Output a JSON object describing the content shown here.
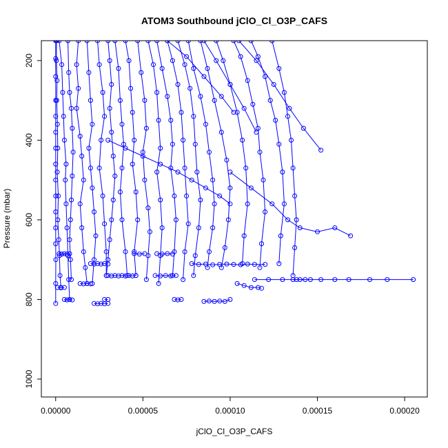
{
  "chart_data": {
    "type": "line",
    "title": "ATOM3 Southbound jClO_Cl_O3P_CAFS",
    "xlabel": "jClO_Cl_O3P_CAFS",
    "ylabel": "Pressure (mbar)",
    "xlim": [
      -8.2e-06,
      0.000213
    ],
    "ylim": [
      1045,
      150
    ],
    "y_reversed": true,
    "grid": false,
    "series_color": "#0000ff",
    "marker": "open-circle",
    "x_ticks": [
      {
        "value": 0,
        "label": "0.00000"
      },
      {
        "value": 5e-05,
        "label": "0.00005"
      },
      {
        "value": 0.0001,
        "label": "0.00010"
      },
      {
        "value": 0.00015,
        "label": "0.00015"
      },
      {
        "value": 0.0002,
        "label": "0.00020"
      }
    ],
    "y_ticks": [
      {
        "value": 200,
        "label": "200"
      },
      {
        "value": 400,
        "label": "400"
      },
      {
        "value": 600,
        "label": "600"
      },
      {
        "value": 800,
        "label": "800"
      },
      {
        "value": 1000,
        "label": "1000"
      }
    ],
    "series": [
      {
        "x": [
          0,
          0,
          0,
          0,
          0,
          0,
          0,
          0,
          0,
          0,
          0,
          0,
          0,
          1e-07,
          0,
          0
        ],
        "y": [
          150,
          195,
          240,
          300,
          340,
          380,
          420,
          460,
          500,
          540,
          580,
          620,
          660,
          700,
          760,
          810
        ]
      },
      {
        "x": [
          5e-07,
          4e-07,
          8e-07,
          6e-07,
          1e-06,
          1.2e-06,
          9e-07,
          1.5e-06,
          1.2e-06,
          1.8e-06,
          2.2e-06,
          2.5e-06,
          3e-06
        ],
        "y": [
          150,
          200,
          250,
          300,
          360,
          420,
          480,
          540,
          600,
          650,
          690,
          740,
          770
        ]
      },
      {
        "x": [
          2e-06,
          3.5e-06,
          4e-06,
          4.5e-06,
          5e-06,
          6e-06,
          5.5e-06,
          6e-06,
          6.5e-06,
          7e-06,
          7.5e-06,
          8e-06
        ],
        "y": [
          150,
          210,
          280,
          340,
          400,
          460,
          500,
          560,
          620,
          690,
          750,
          800
        ]
      },
      {
        "x": [
          7e-06,
          7.5e-06,
          8e-06,
          9e-06,
          9.5e-06,
          1e-05,
          9.5e-06,
          9e-06,
          8.5e-06,
          8e-06,
          8.5e-06,
          9e-06
        ],
        "y": [
          150,
          230,
          280,
          320,
          370,
          430,
          490,
          550,
          600,
          650,
          700,
          750
        ]
      },
      {
        "x": [
          1.3e-05,
          1.2e-05,
          1.3e-05,
          1.2e-05,
          1.4e-05,
          1.5e-05,
          1.6e-05,
          1.4e-05,
          1.5e-05,
          1.6e-05,
          1.7e-05,
          1.8e-05
        ],
        "y": [
          150,
          210,
          270,
          320,
          390,
          440,
          500,
          560,
          620,
          680,
          720,
          760
        ]
      },
      {
        "x": [
          1.8e-05,
          1.9e-05,
          2e-05,
          2.1e-05,
          1.9e-05,
          2e-05,
          2.1e-05,
          2.2e-05,
          2.3e-05,
          2.2e-05,
          2.1e-05
        ],
        "y": [
          150,
          230,
          300,
          360,
          420,
          470,
          520,
          580,
          640,
          700,
          760
        ]
      },
      {
        "x": [
          2.4e-05,
          2.5e-05,
          2.7e-05,
          2.8e-05,
          2.6e-05,
          2.5e-05,
          2.7e-05,
          2.8e-05,
          2.9e-05,
          2.9e-05
        ],
        "y": [
          150,
          210,
          280,
          340,
          400,
          470,
          540,
          610,
          680,
          740
        ]
      },
      {
        "x": [
          3e-05,
          3.1e-05,
          3.2e-05,
          3.1e-05,
          3.2e-05,
          3.3e-05,
          3.4e-05,
          3.3e-05,
          3.2e-05,
          3.1e-05,
          3e-05,
          2.9e-05
        ],
        "y": [
          150,
          200,
          260,
          320,
          380,
          440,
          490,
          550,
          600,
          650,
          700,
          740
        ]
      },
      {
        "x": [
          3.4e-05,
          3.6e-05,
          3.7e-05,
          3.8e-05,
          3.9e-05,
          3.8e-05,
          3.7e-05,
          3.8e-05,
          4e-05,
          4.1e-05
        ],
        "y": [
          150,
          220,
          300,
          360,
          410,
          470,
          530,
          600,
          680,
          740
        ]
      },
      {
        "x": [
          4e-05,
          4.2e-05,
          4.3e-05,
          4.4e-05,
          4.5e-05,
          4.4e-05,
          4.6e-05,
          4.7e-05,
          4.5e-05,
          4.6e-05
        ],
        "y": [
          150,
          200,
          270,
          330,
          400,
          460,
          530,
          600,
          680,
          740
        ]
      },
      {
        "x": [
          4.7e-05,
          4.9e-05,
          5.1e-05,
          5.2e-05,
          5e-05,
          5.1e-05,
          5.3e-05,
          5.4e-05,
          5.3e-05,
          5.2e-05
        ],
        "y": [
          150,
          230,
          300,
          370,
          430,
          500,
          570,
          630,
          690,
          750
        ]
      },
      {
        "x": [
          5.3e-05,
          5.6e-05,
          5.8e-05,
          5.9e-05,
          6e-05,
          5.8e-05,
          6e-05,
          6.1e-05,
          6e-05,
          5.9e-05
        ],
        "y": [
          150,
          210,
          280,
          350,
          420,
          480,
          550,
          620,
          690,
          760
        ]
      },
      {
        "x": [
          5.8e-05,
          6.1e-05,
          6.4e-05,
          6.6e-05,
          6.7e-05,
          6.6e-05,
          6.8e-05,
          6.9e-05,
          6.8e-05,
          6.7e-05
        ],
        "y": [
          150,
          220,
          290,
          350,
          410,
          470,
          540,
          600,
          680,
          740
        ]
      },
      {
        "x": [
          6.4e-05,
          6.7e-05,
          7e-05,
          7.2e-05,
          7.3e-05,
          7.4e-05,
          7.5e-05,
          7.6e-05,
          7.4e-05,
          7.3e-05
        ],
        "y": [
          150,
          200,
          260,
          330,
          400,
          470,
          540,
          610,
          680,
          750
        ]
      },
      {
        "x": [
          7e-05,
          7.4e-05,
          7.7e-05,
          7.9e-05,
          8e-05,
          8.1e-05,
          8.3e-05,
          8.2e-05,
          8e-05,
          7.9e-05
        ],
        "y": [
          150,
          210,
          270,
          340,
          410,
          480,
          550,
          620,
          690,
          740
        ]
      },
      {
        "x": [
          7.6e-05,
          7.9e-05,
          8.3e-05,
          8.6e-05,
          8.8e-05,
          9e-05,
          9.1e-05,
          9e-05,
          8.8e-05,
          8.7e-05
        ],
        "y": [
          150,
          220,
          290,
          360,
          430,
          500,
          560,
          620,
          680,
          720
        ]
      },
      {
        "x": [
          8.3e-05,
          8.7e-05,
          9.1e-05,
          9.5e-05,
          9.8e-05,
          0.0001,
          9.9e-05,
          9.7e-05,
          9.5e-05
        ],
        "y": [
          150,
          220,
          300,
          380,
          450,
          520,
          600,
          670,
          720
        ]
      },
      {
        "x": [
          9.2e-05,
          9.6e-05,
          0.0001,
          0.000104,
          0.000107,
          0.000109,
          0.00011,
          0.000108,
          0.000107
        ],
        "y": [
          150,
          200,
          260,
          330,
          400,
          470,
          560,
          640,
          710
        ]
      },
      {
        "x": [
          0.000102,
          0.000106,
          0.00011,
          0.000113,
          0.000116,
          0.000117,
          0.000119,
          0.00012,
          0.000118,
          0.000117
        ],
        "y": [
          150,
          190,
          250,
          310,
          370,
          430,
          500,
          580,
          660,
          720
        ]
      },
      {
        "x": [
          0.000112,
          0.000116,
          0.00012,
          0.000123,
          0.000126,
          0.000128,
          0.00013,
          0.000131,
          0.000129,
          0.000128
        ],
        "y": [
          150,
          190,
          240,
          300,
          350,
          410,
          480,
          560,
          640,
          710
        ]
      },
      {
        "x": [
          0.000124,
          0.000128,
          0.000131,
          0.000133,
          0.000135,
          0.000136,
          0.000137,
          0.000138,
          0.000137,
          0.000136
        ],
        "y": [
          150,
          220,
          280,
          340,
          400,
          470,
          540,
          600,
          670,
          740
        ]
      },
      {
        "x": [
          0.000105,
          0.000115,
          0.000125,
          0.000134,
          0.000142,
          0.000152
        ],
        "y": [
          150,
          200,
          260,
          320,
          370,
          425
        ]
      },
      {
        "x": [
          0.0001,
          0.000112,
          0.000124,
          0.000133,
          0.00014,
          0.00015,
          0.00016,
          0.000169
        ],
        "y": [
          480,
          520,
          560,
          600,
          620,
          630,
          620,
          640
        ]
      },
      {
        "x": [
          6.4e-05,
          7.5e-05,
          8.5e-05,
          9.5e-05,
          0.000102
        ],
        "y": [
          150,
          190,
          240,
          290,
          330
        ]
      },
      {
        "x": [
          8.5e-05,
          9.2e-05,
          0.0001,
          0.000108,
          0.000115
        ],
        "y": [
          150,
          200,
          260,
          320,
          380
        ]
      },
      {
        "x": [
          3e-05,
          4e-05,
          5e-05,
          6e-05,
          7e-05,
          7.8e-05,
          8.6e-05,
          9.4e-05,
          0.0001
        ],
        "y": [
          400,
          420,
          440,
          460,
          480,
          500,
          520,
          540,
          560
        ]
      },
      {
        "x": [
          7.8e-05,
          8.2e-05,
          8.6e-05,
          9e-05,
          9.4e-05,
          9.8e-05,
          0.000102,
          0.000106,
          0.00011,
          0.000114,
          0.00012
        ],
        "y": [
          710,
          712,
          711,
          713,
          712,
          711,
          712,
          713,
          711,
          712,
          712
        ]
      },
      {
        "x": [
          0.000114,
          0.000122,
          0.00013,
          0.000138,
          0.000146,
          0.000152,
          0.00016,
          0.000168,
          0.00018,
          0.00019,
          0.000205
        ],
        "y": [
          750,
          750,
          750,
          750,
          750,
          750,
          750,
          750,
          750,
          750,
          750
        ]
      },
      {
        "x": [
          2e-06,
          3.5e-06,
          5e-06,
          6.5e-06,
          8e-06
        ],
        "y": [
          685,
          686,
          685,
          686,
          685
        ]
      },
      {
        "x": [
          1e-06,
          3e-06,
          5e-06
        ],
        "y": [
          770,
          771,
          770
        ]
      },
      {
        "x": [
          5e-06,
          6.5e-06,
          8e-06,
          9.5e-06
        ],
        "y": [
          800,
          801,
          800,
          801
        ]
      },
      {
        "x": [
          1.4e-05,
          1.6e-05,
          1.8e-05,
          2e-05
        ],
        "y": [
          760,
          761,
          760,
          761
        ]
      },
      {
        "x": [
          2e-05,
          2.2e-05,
          2.4e-05,
          2.6e-05,
          2.8e-05,
          3e-05
        ],
        "y": [
          710,
          711,
          710,
          711,
          710,
          711
        ]
      },
      {
        "x": [
          2.2e-05,
          2.4e-05,
          2.6e-05,
          2.8e-05,
          3e-05
        ],
        "y": [
          810,
          811,
          810,
          811,
          810
        ]
      },
      {
        "x": [
          3e-05,
          3.2e-05,
          3.4e-05,
          3.6e-05,
          3.8e-05,
          4e-05,
          4.2e-05,
          4.4e-05,
          4.6e-05
        ],
        "y": [
          740,
          741,
          740,
          741,
          740,
          741,
          740,
          741,
          740
        ]
      },
      {
        "x": [
          2.8e-05,
          3e-05
        ],
        "y": [
          800,
          800
        ]
      },
      {
        "x": [
          4.5e-05,
          4.8e-05,
          5.1e-05
        ],
        "y": [
          685,
          686,
          685
        ]
      },
      {
        "x": [
          5.8e-05,
          6.1e-05,
          6.4e-05,
          6.7e-05
        ],
        "y": [
          685,
          686,
          685,
          686
        ]
      },
      {
        "x": [
          5.7e-05,
          6e-05,
          6.3e-05,
          6.6e-05,
          6.9e-05
        ],
        "y": [
          740,
          741,
          740,
          741,
          740
        ]
      },
      {
        "x": [
          6.8e-05,
          7e-05,
          7.2e-05
        ],
        "y": [
          800,
          801,
          800
        ]
      },
      {
        "x": [
          8.5e-05,
          8.8e-05,
          9.1e-05,
          9.4e-05,
          9.7e-05,
          0.0001
        ],
        "y": [
          805,
          804,
          805,
          804,
          805,
          800
        ]
      },
      {
        "x": [
          0.000104,
          0.000108,
          0.000112,
          0.000116,
          0.000118
        ],
        "y": [
          760,
          765,
          770,
          770,
          772
        ]
      },
      {
        "x": [
          0.000136,
          0.00014,
          0.000143
        ],
        "y": [
          750,
          750,
          750
        ]
      }
    ]
  }
}
